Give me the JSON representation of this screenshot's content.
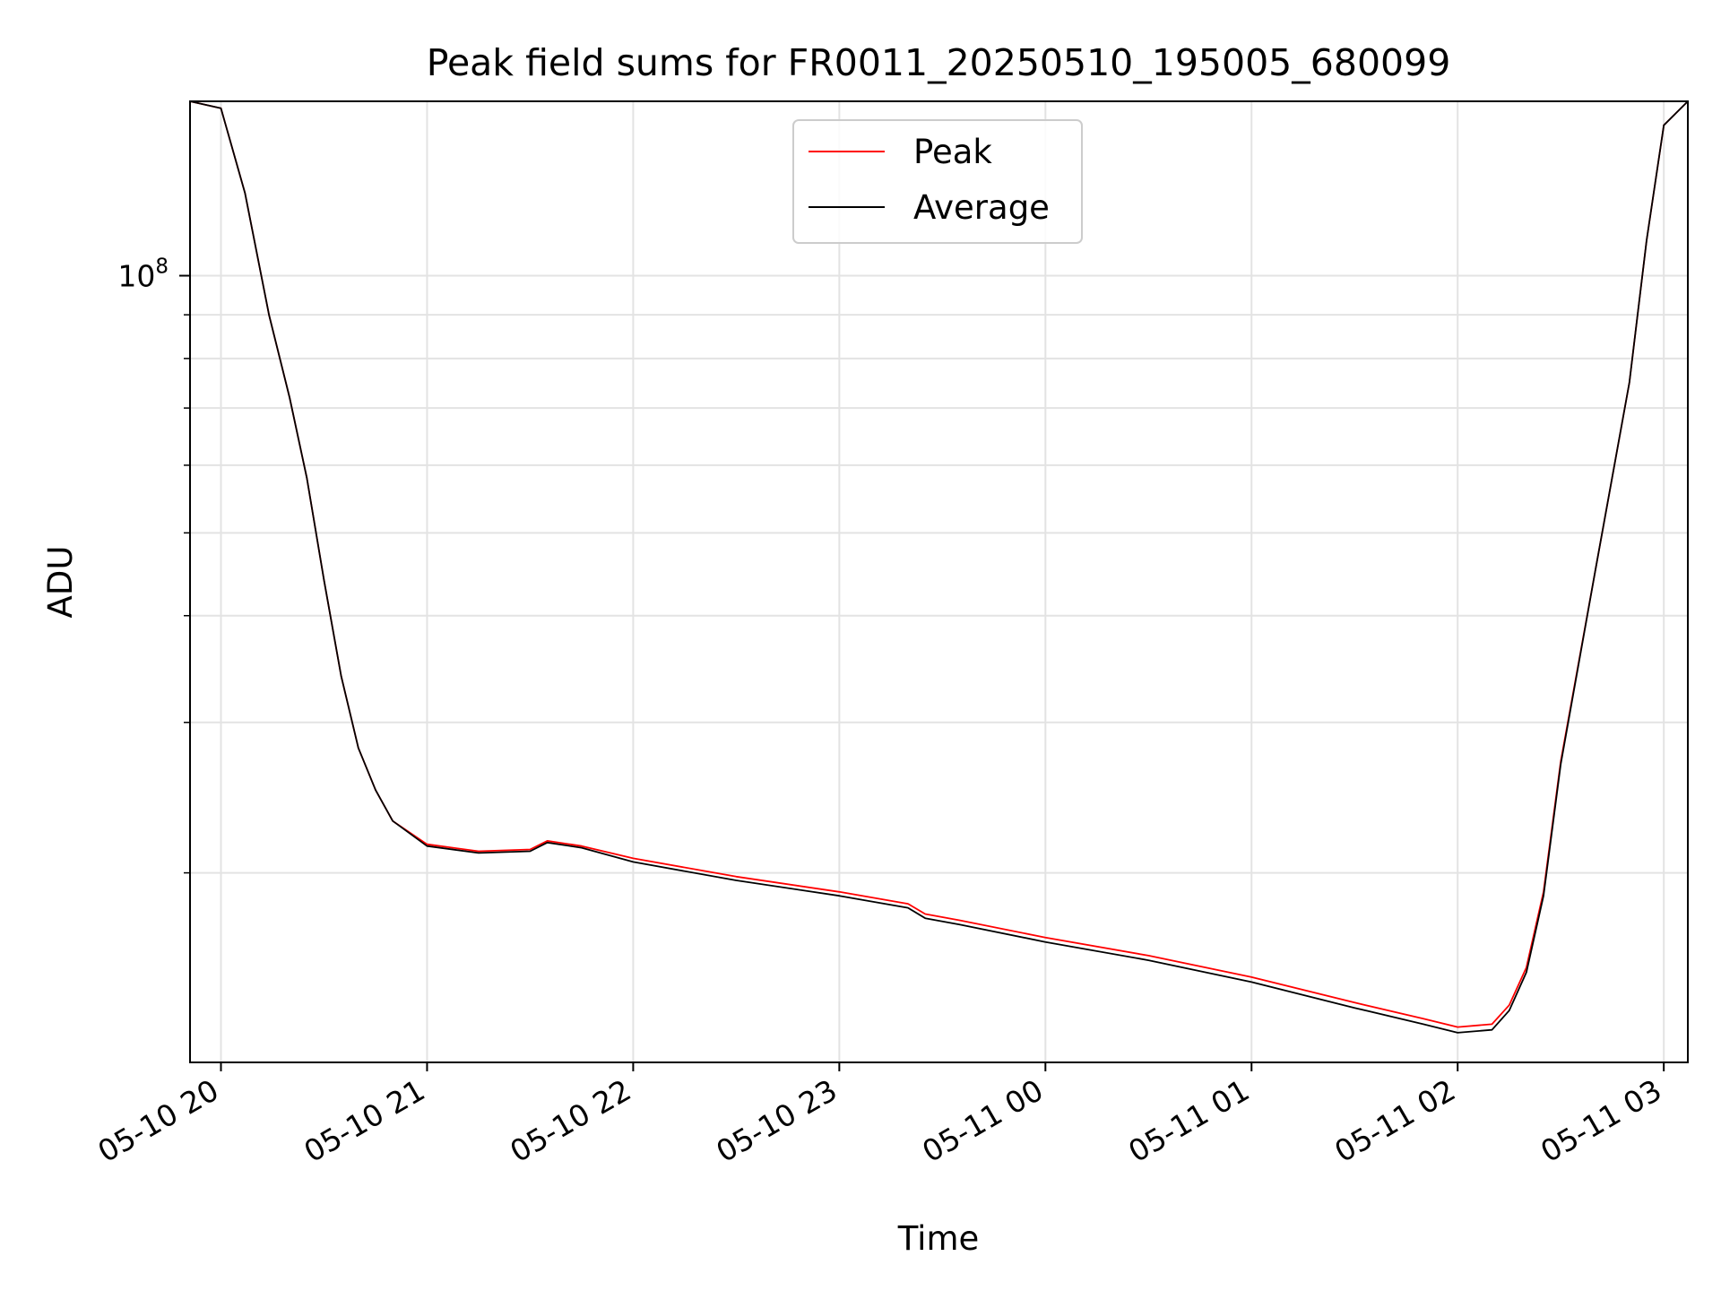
{
  "chart_data": {
    "type": "line",
    "title": "Peak field sums for FR0011_20250510_195005_680099",
    "xlabel": "Time",
    "ylabel": "ADU",
    "y_scale": "log",
    "xlim": [
      "2025-05-10 19:51",
      "2025-05-11 03:07"
    ],
    "ylim": [
      12000000,
      160000000
    ],
    "x_ticks": [
      "05-10 20",
      "05-10 21",
      "05-10 22",
      "05-10 23",
      "05-11 00",
      "05-11 01",
      "05-11 02",
      "05-11 03"
    ],
    "y_ticks": [
      {
        "value": 100000000,
        "base": "10",
        "exponent": "8"
      }
    ],
    "y_minor_ticks": [
      20000000,
      30000000,
      40000000,
      50000000,
      60000000,
      70000000,
      80000000,
      90000000
    ],
    "grid": true,
    "legend_position": "upper center",
    "series": [
      {
        "name": "Peak",
        "color": "#ff0000",
        "x": [
          "2025-05-10 19:51",
          "2025-05-10 20:00",
          "2025-05-10 20:07",
          "2025-05-10 20:14",
          "2025-05-10 20:20",
          "2025-05-10 20:25",
          "2025-05-10 20:30",
          "2025-05-10 20:35",
          "2025-05-10 20:40",
          "2025-05-10 20:45",
          "2025-05-10 20:50",
          "2025-05-10 21:00",
          "2025-05-10 21:15",
          "2025-05-10 21:30",
          "2025-05-10 21:35",
          "2025-05-10 21:45",
          "2025-05-10 22:00",
          "2025-05-10 22:30",
          "2025-05-10 23:00",
          "2025-05-10 23:20",
          "2025-05-10 23:25",
          "2025-05-10 23:35",
          "2025-05-11 00:00",
          "2025-05-11 00:30",
          "2025-05-11 01:00",
          "2025-05-11 01:30",
          "2025-05-11 01:50",
          "2025-05-11 02:00",
          "2025-05-11 02:10",
          "2025-05-11 02:15",
          "2025-05-11 02:20",
          "2025-05-11 02:25",
          "2025-05-11 02:30",
          "2025-05-11 02:40",
          "2025-05-11 02:50",
          "2025-05-11 02:55",
          "2025-05-11 03:00",
          "2025-05-11 03:07"
        ],
        "values": [
          160000000,
          157000000,
          125000000,
          90000000,
          72000000,
          58000000,
          44000000,
          34000000,
          28000000,
          25000000,
          23000000,
          21600000,
          21200000,
          21300000,
          21800000,
          21500000,
          20800000,
          19800000,
          19000000,
          18400000,
          17900000,
          17600000,
          16800000,
          16000000,
          15100000,
          14100000,
          13500000,
          13200000,
          13300000,
          14000000,
          15500000,
          19000000,
          27000000,
          45000000,
          75000000,
          110000000,
          150000000,
          160000000
        ]
      },
      {
        "name": "Average",
        "color": "#000000",
        "x": [
          "2025-05-10 19:51",
          "2025-05-10 20:00",
          "2025-05-10 20:07",
          "2025-05-10 20:14",
          "2025-05-10 20:20",
          "2025-05-10 20:25",
          "2025-05-10 20:30",
          "2025-05-10 20:35",
          "2025-05-10 20:40",
          "2025-05-10 20:45",
          "2025-05-10 20:50",
          "2025-05-10 21:00",
          "2025-05-10 21:15",
          "2025-05-10 21:30",
          "2025-05-10 21:35",
          "2025-05-10 21:45",
          "2025-05-10 22:00",
          "2025-05-10 22:30",
          "2025-05-10 23:00",
          "2025-05-10 23:20",
          "2025-05-10 23:25",
          "2025-05-10 23:35",
          "2025-05-11 00:00",
          "2025-05-11 00:30",
          "2025-05-11 01:00",
          "2025-05-11 01:30",
          "2025-05-11 01:50",
          "2025-05-11 02:00",
          "2025-05-11 02:10",
          "2025-05-11 02:15",
          "2025-05-11 02:20",
          "2025-05-11 02:25",
          "2025-05-11 02:30",
          "2025-05-11 02:40",
          "2025-05-11 02:50",
          "2025-05-11 02:55",
          "2025-05-11 03:00",
          "2025-05-11 03:07"
        ],
        "values": [
          160000000,
          157000000,
          125000000,
          90000000,
          72000000,
          58000000,
          44000000,
          34000000,
          28000000,
          25000000,
          23000000,
          21500000,
          21100000,
          21200000,
          21700000,
          21400000,
          20600000,
          19600000,
          18800000,
          18200000,
          17700000,
          17400000,
          16600000,
          15800000,
          14900000,
          13900000,
          13300000,
          13000000,
          13100000,
          13800000,
          15300000,
          18800000,
          26800000,
          45000000,
          75000000,
          110000000,
          150000000,
          160000000
        ]
      }
    ]
  }
}
